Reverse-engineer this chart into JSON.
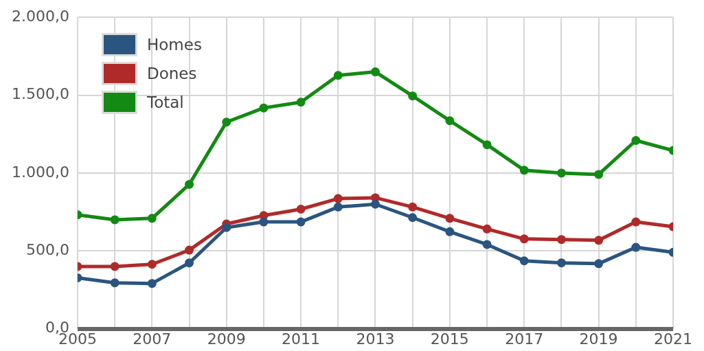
{
  "chart_data": {
    "type": "line",
    "x": [
      2005,
      2006,
      2007,
      2008,
      2009,
      2010,
      2011,
      2012,
      2013,
      2014,
      2015,
      2016,
      2017,
      2018,
      2019,
      2020,
      2021
    ],
    "series": [
      {
        "name": "Homes",
        "color": "#2b5580",
        "values": [
          327,
          295,
          291,
          423,
          650,
          686,
          686,
          782,
          800,
          714,
          623,
          541,
          436,
          423,
          418,
          523,
          491
        ]
      },
      {
        "name": "Dones",
        "color": "#b02a2a",
        "values": [
          400,
          400,
          414,
          505,
          673,
          727,
          768,
          836,
          841,
          782,
          709,
          641,
          577,
          573,
          568,
          686,
          655
        ]
      },
      {
        "name": "Total",
        "color": "#138a13",
        "values": [
          732,
          700,
          709,
          927,
          1327,
          1418,
          1455,
          1627,
          1650,
          1495,
          1336,
          1182,
          1018,
          1000,
          991,
          1209,
          1145
        ]
      }
    ],
    "xlim": [
      2005,
      2021
    ],
    "xticks": [
      2005,
      {
        "value": 2006,
        "label": null
      },
      2007,
      {
        "value": 2008,
        "label": null
      },
      2009,
      {
        "value": 2010,
        "label": null
      },
      2011,
      {
        "value": 2012,
        "label": null
      },
      2013,
      {
        "value": 2014,
        "label": null
      },
      2015,
      {
        "value": 2016,
        "label": null
      },
      2017,
      {
        "value": 2018,
        "label": null
      },
      2019,
      {
        "value": 2020,
        "label": null
      },
      2021
    ],
    "ylim": [
      0,
      2000
    ],
    "yticks": [
      {
        "value": 0,
        "label": "0,0"
      },
      {
        "value": 500,
        "label": "500,0"
      },
      {
        "value": 1000,
        "label": "1.000,0"
      },
      {
        "value": 1500,
        "label": "1.500,0"
      },
      {
        "value": 2000,
        "label": "2.000,0"
      }
    ],
    "grid": true,
    "legend": "top left",
    "marker": "circle",
    "line_style": "solid"
  }
}
